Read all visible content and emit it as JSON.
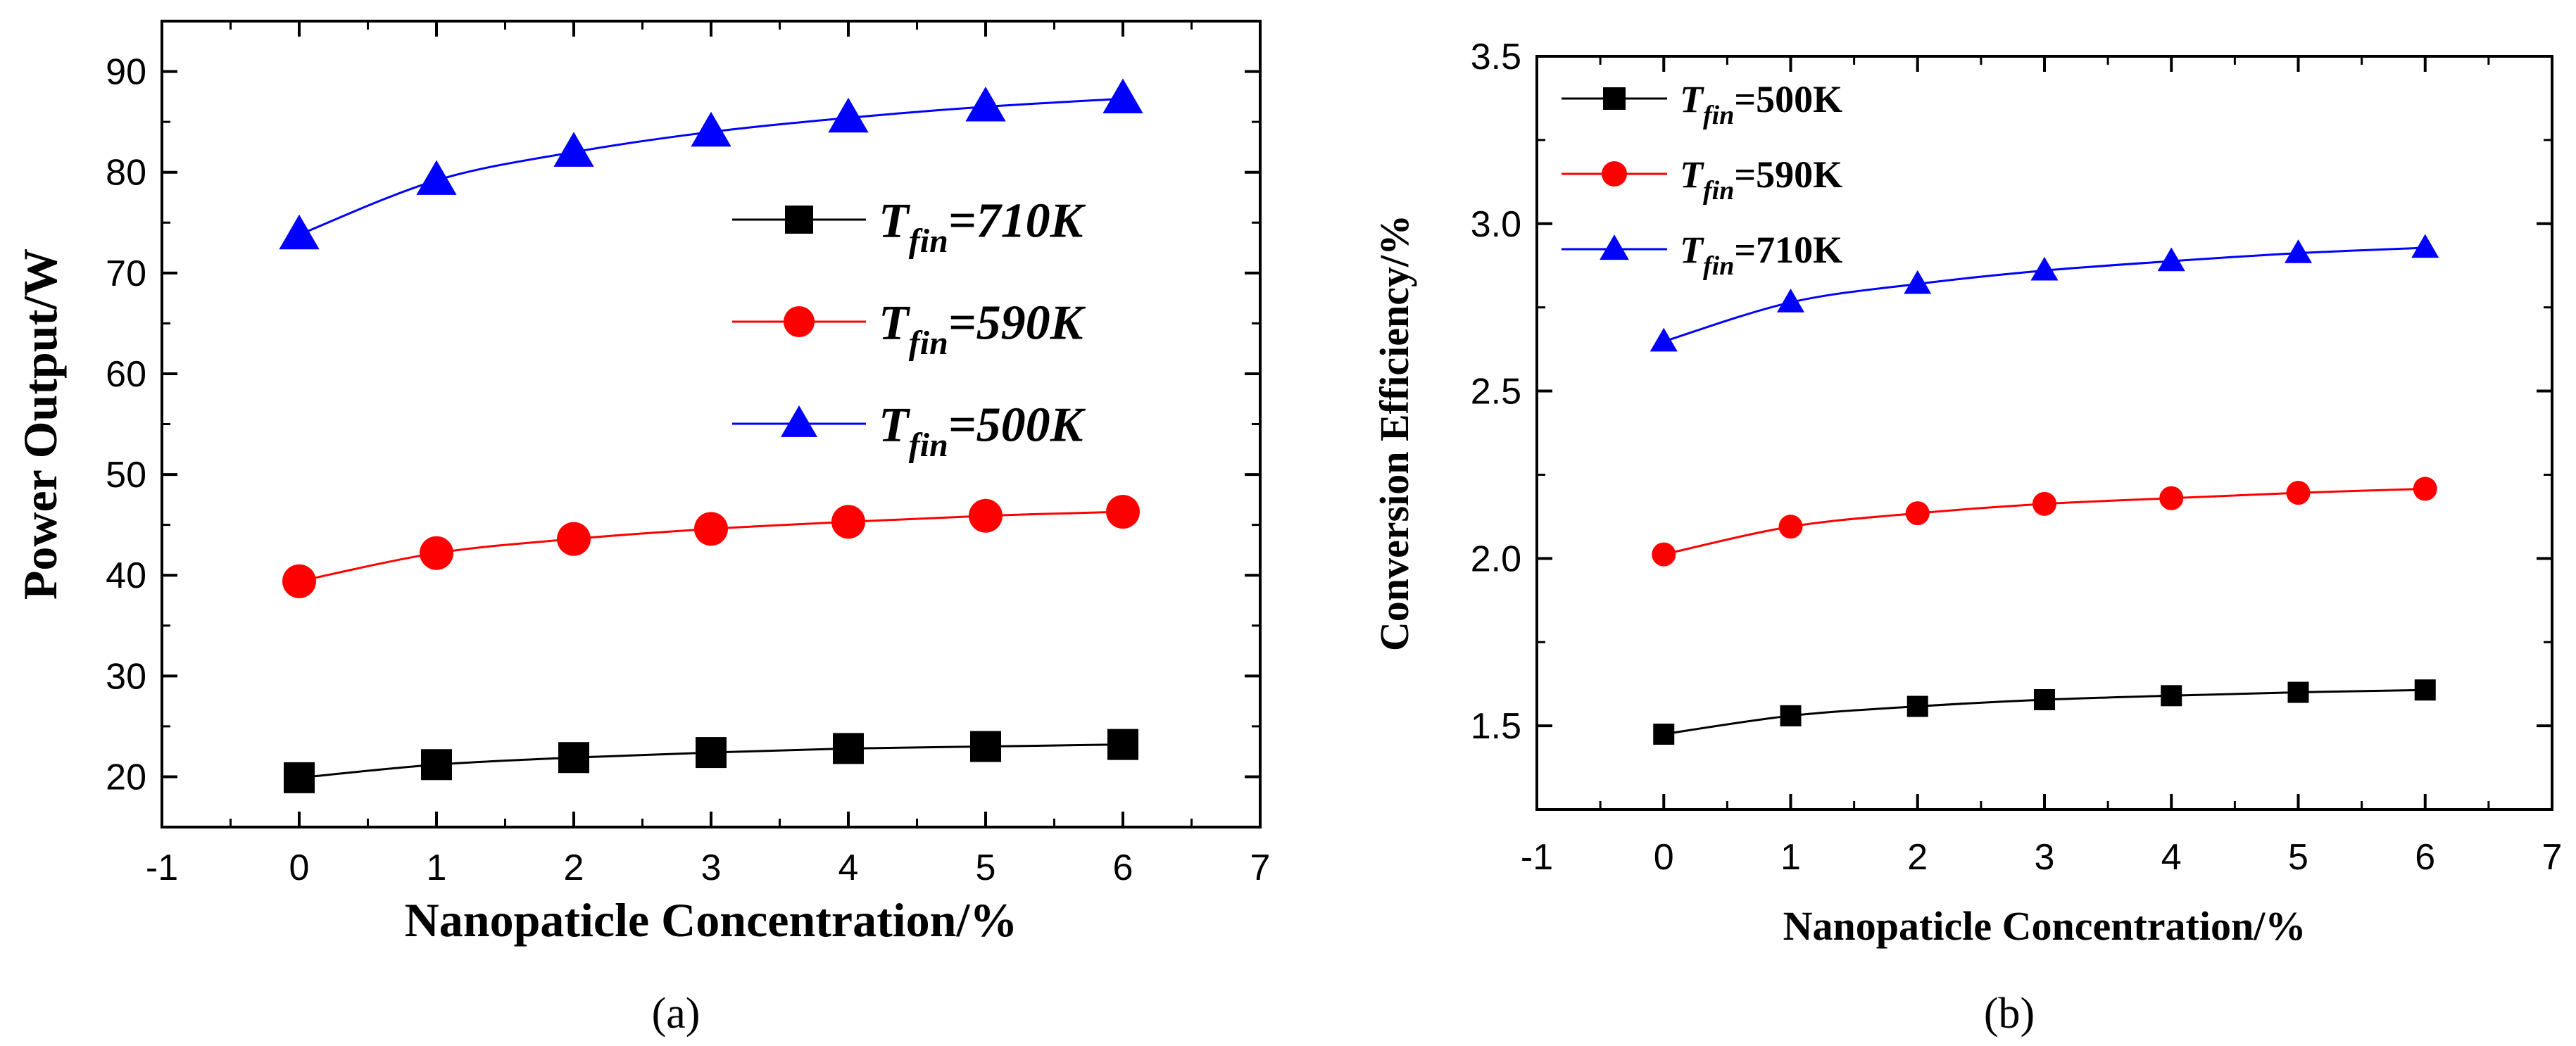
{
  "chart_data": [
    {
      "type": "line",
      "panel": "a",
      "caption": "(a)",
      "xlabel": "Nanopaticle Concentration/%",
      "ylabel": "Power Output/W",
      "xlim": [
        -1,
        7
      ],
      "ylim": [
        15,
        95
      ],
      "xticks": [
        -1,
        0,
        1,
        2,
        3,
        4,
        5,
        6,
        7
      ],
      "yticks": [
        20,
        30,
        40,
        50,
        60,
        70,
        80,
        90
      ],
      "x": [
        0,
        1,
        2,
        3,
        4,
        5,
        6
      ],
      "legend_position": "center-right",
      "series": [
        {
          "name_sym": "T",
          "name_sub": "fin",
          "name_tail": "=710K",
          "marker": "square",
          "color": "#000000",
          "values": [
            19.9,
            21.2,
            21.9,
            22.4,
            22.8,
            23.0,
            23.2
          ]
        },
        {
          "name_sym": "T",
          "name_sub": "fin",
          "name_tail": "=590K",
          "marker": "circle",
          "color": "#ff0000",
          "values": [
            39.4,
            42.2,
            43.6,
            44.6,
            45.3,
            45.9,
            46.3
          ]
        },
        {
          "name_sym": "T",
          "name_sub": "fin",
          "name_tail": "=500K",
          "marker": "triangle",
          "color": "#0000ff",
          "values": [
            73.8,
            79.2,
            82.0,
            84.0,
            85.4,
            86.5,
            87.3
          ]
        }
      ]
    },
    {
      "type": "line",
      "panel": "b",
      "caption": "(b)",
      "xlabel": "Nanopaticle Concentration/%",
      "ylabel": "Conversion Efficiency/%",
      "xlim": [
        -1,
        7
      ],
      "ylim": [
        1.25,
        3.5
      ],
      "xticks": [
        -1,
        0,
        1,
        2,
        3,
        4,
        5,
        6,
        7
      ],
      "yticks": [
        1.5,
        2.0,
        2.5,
        3.0,
        3.5
      ],
      "x": [
        0,
        1,
        2,
        3,
        4,
        5,
        6
      ],
      "legend_position": "top-left",
      "series": [
        {
          "name_sym": "T",
          "name_sub": "fin",
          "name_tail": "=500K",
          "marker": "square",
          "color": "#000000",
          "values": [
            1.475,
            1.53,
            1.558,
            1.578,
            1.59,
            1.6,
            1.607
          ]
        },
        {
          "name_sym": "T",
          "name_sub": "fin",
          "name_tail": "=590K",
          "marker": "circle",
          "color": "#ff0000",
          "values": [
            2.012,
            2.095,
            2.135,
            2.163,
            2.18,
            2.196,
            2.208
          ]
        },
        {
          "name_sym": "T",
          "name_sub": "fin",
          "name_tail": "=710K",
          "marker": "triangle",
          "color": "#0000ff",
          "values": [
            2.648,
            2.765,
            2.82,
            2.86,
            2.888,
            2.912,
            2.928
          ]
        }
      ]
    }
  ]
}
